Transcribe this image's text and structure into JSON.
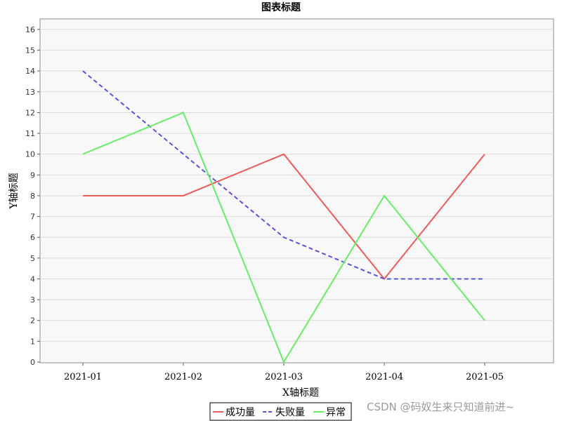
{
  "chart_data": {
    "type": "line",
    "title": "图表标题",
    "xlabel": "X轴标题",
    "ylabel": "Y轴标题",
    "categories": [
      "2021-01",
      "2021-02",
      "2021-03",
      "2021-04",
      "2021-05"
    ],
    "ylim": [
      0,
      16.5
    ],
    "yticks": [
      0,
      1,
      2,
      3,
      4,
      5,
      6,
      7,
      8,
      9,
      10,
      11,
      12,
      13,
      14,
      15,
      16
    ],
    "grid": true,
    "legend_position": "bottom-center",
    "series": [
      {
        "name": "成功量",
        "values": [
          8,
          8,
          10,
          4,
          10
        ],
        "color": "#ee5a5a",
        "dash": "solid"
      },
      {
        "name": "失败量",
        "values": [
          14,
          10,
          6,
          4,
          4
        ],
        "color": "#5555dd",
        "dash": "dashed"
      },
      {
        "name": "异常",
        "values": [
          10,
          12,
          0,
          8,
          2
        ],
        "color": "#66ee66",
        "dash": "solid"
      }
    ]
  },
  "watermark": "CSDN @码奴生来只知道前进~"
}
